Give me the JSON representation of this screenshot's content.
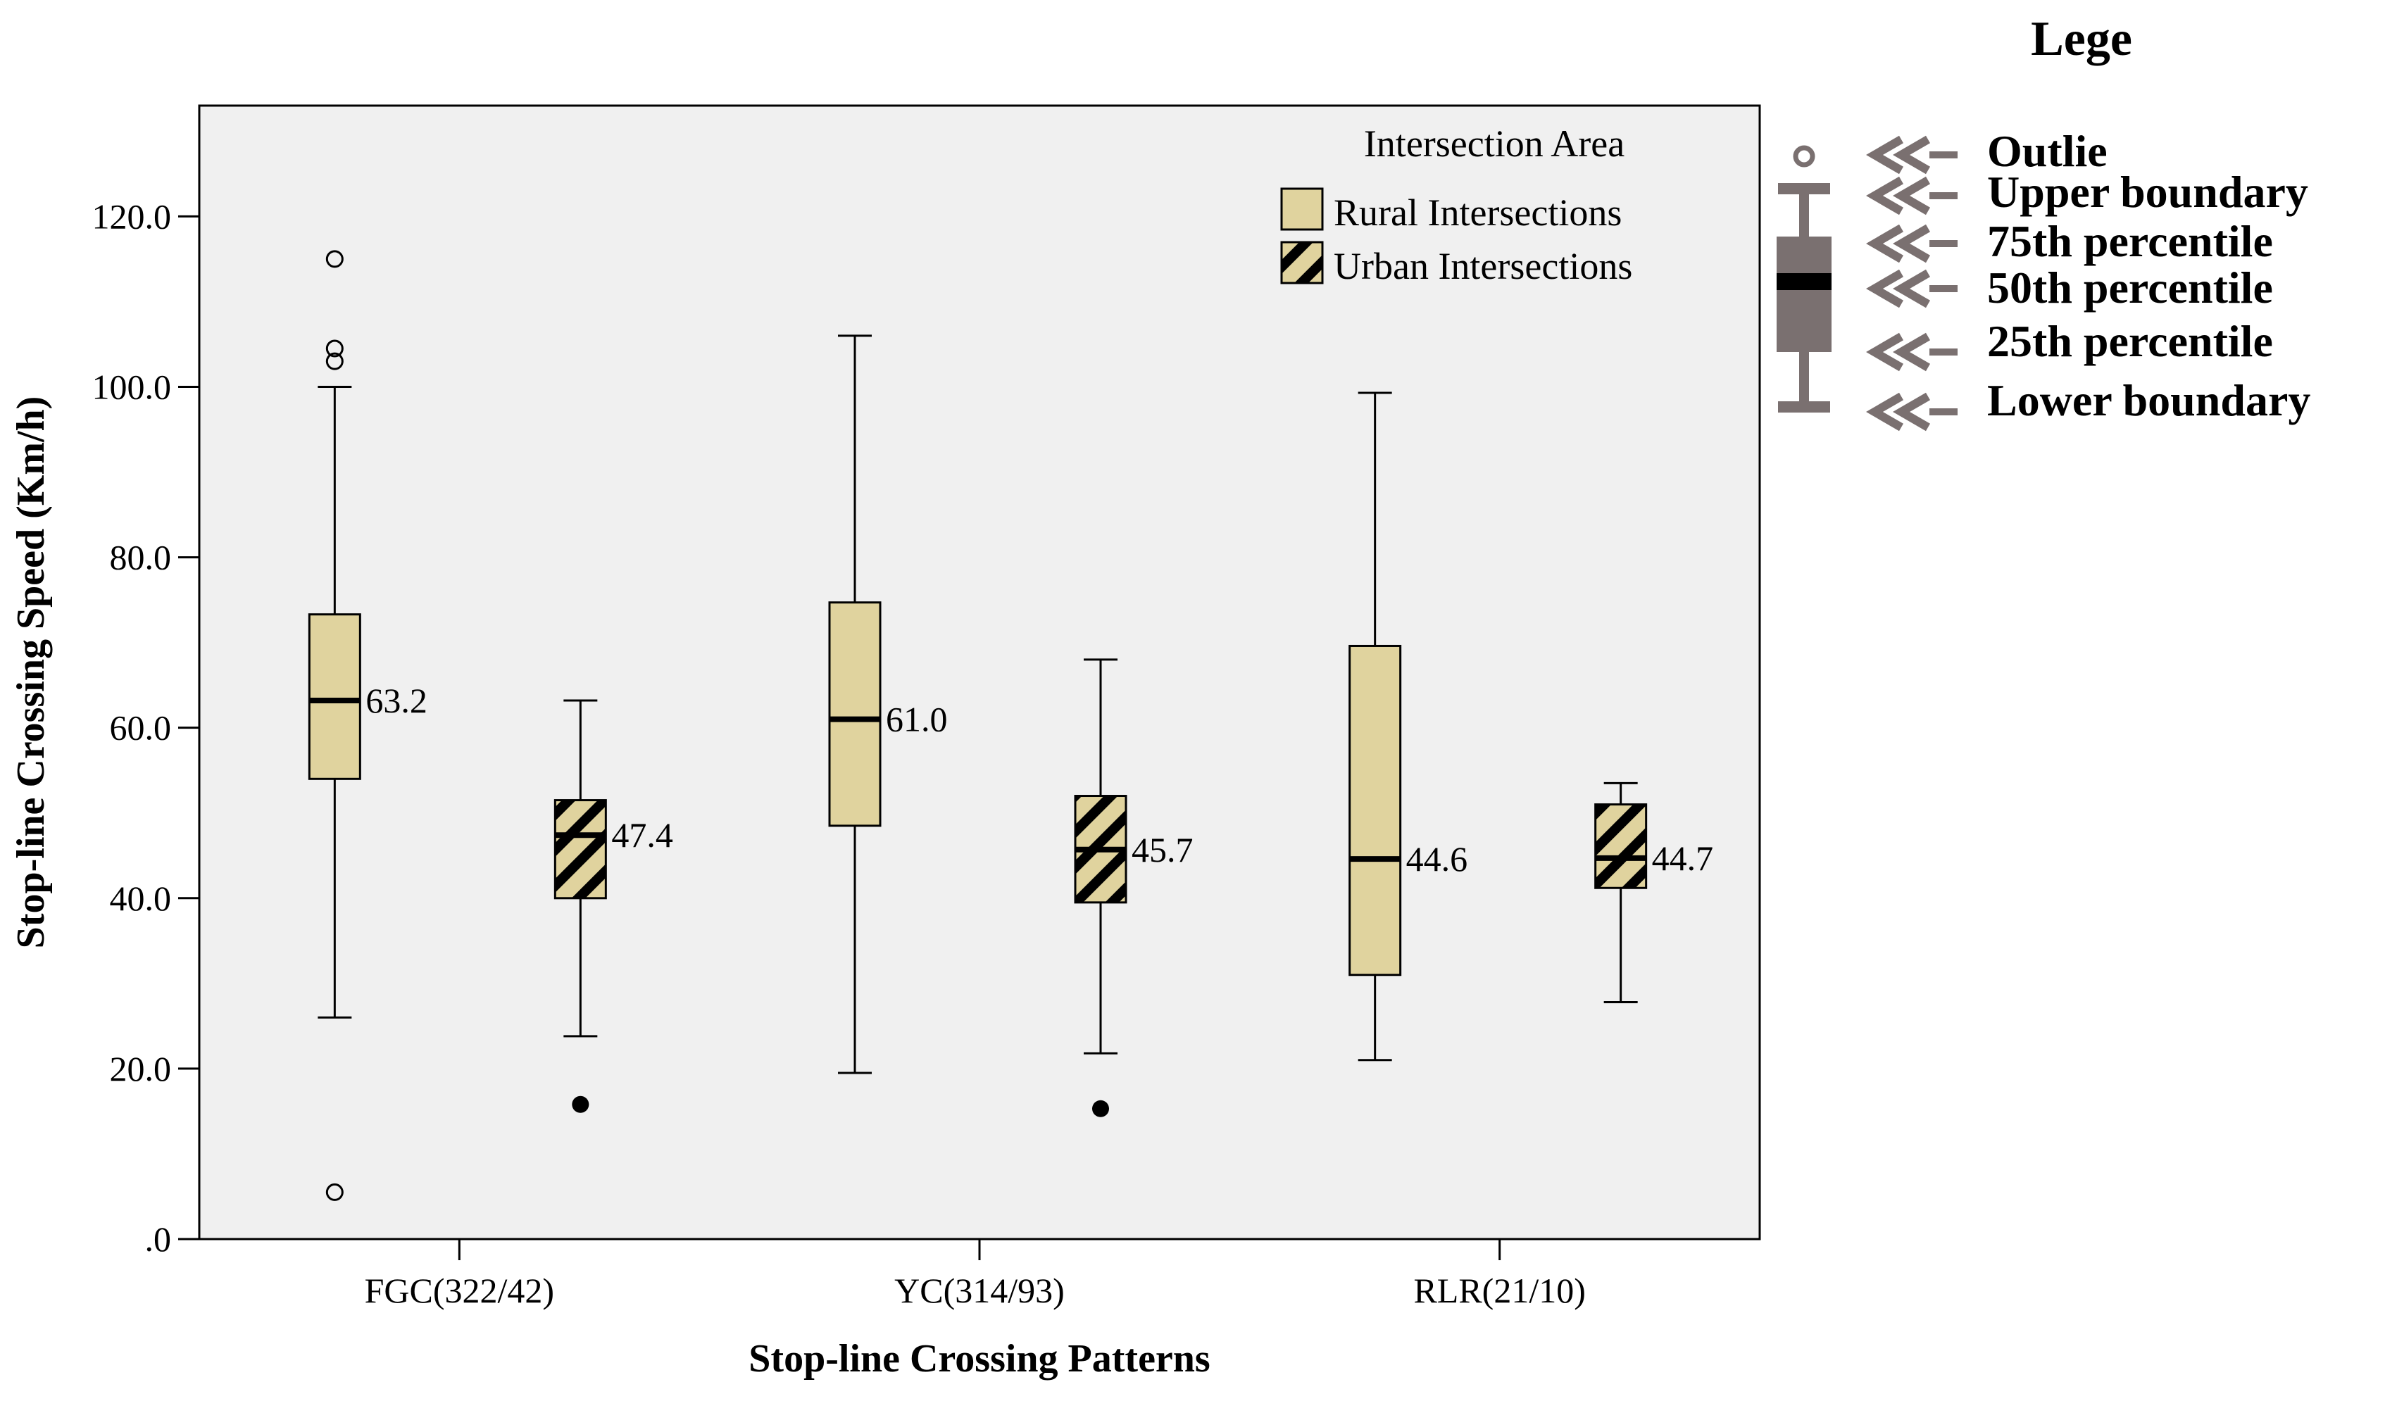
{
  "colors": {
    "plot_bg": "#f0f0f0",
    "rural_fill": "#e0d39e",
    "stroke": "#000000",
    "legend_gray": "#7a7070",
    "stripe": "#000000"
  },
  "chart_data": {
    "type": "boxplot",
    "title": "",
    "xlabel": "Stop-line Crossing Patterns",
    "ylabel": "Stop-line Crossing Speed (Km/h)",
    "ylim": [
      0,
      133
    ],
    "yticks": [
      0,
      20,
      40,
      60,
      80,
      100,
      120
    ],
    "ytick_labels": [
      ".0",
      "20.0",
      "40.0",
      "60.0",
      "80.0",
      "100.0",
      "120.0"
    ],
    "categories": [
      "FGC(322/42)",
      "YC(314/93)",
      "RLR(21/10)"
    ],
    "legend": {
      "title": "Intersection Area",
      "entries": [
        "Rural Intersections",
        "Urban Intersections"
      ]
    },
    "series": [
      {
        "name": "Rural Intersections",
        "pattern": "solid",
        "boxes": [
          {
            "category": "FGC(322/42)",
            "min": 26.0,
            "q1": 54.0,
            "median": 63.2,
            "q3": 73.3,
            "max": 100.0,
            "label": "63.2",
            "outliers": [
              {
                "value": 115.0,
                "kind": "open"
              },
              {
                "value": 104.5,
                "kind": "open"
              },
              {
                "value": 103.0,
                "kind": "open"
              },
              {
                "value": 5.5,
                "kind": "open"
              }
            ]
          },
          {
            "category": "YC(314/93)",
            "min": 19.5,
            "q1": 48.5,
            "median": 61.0,
            "q3": 74.7,
            "max": 106.0,
            "label": "61.0",
            "outliers": []
          },
          {
            "category": "RLR(21/10)",
            "min": 21.0,
            "q1": 31.0,
            "median": 44.6,
            "q3": 69.6,
            "max": 99.3,
            "label": "44.6",
            "outliers": []
          }
        ]
      },
      {
        "name": "Urban Intersections",
        "pattern": "hatched",
        "boxes": [
          {
            "category": "FGC(322/42)",
            "min": 23.8,
            "q1": 40.0,
            "median": 47.4,
            "q3": 51.5,
            "max": 63.2,
            "label": "47.4",
            "outliers": [
              {
                "value": 15.8,
                "kind": "filled"
              }
            ]
          },
          {
            "category": "YC(314/93)",
            "min": 21.8,
            "q1": 39.5,
            "median": 45.7,
            "q3": 52.0,
            "max": 68.0,
            "label": "45.7",
            "outliers": [
              {
                "value": 15.3,
                "kind": "filled"
              }
            ]
          },
          {
            "category": "RLR(21/10)",
            "min": 27.8,
            "q1": 41.2,
            "median": 44.7,
            "q3": 51.0,
            "max": 53.5,
            "label": "44.7",
            "outliers": []
          }
        ]
      }
    ]
  },
  "key_legend": {
    "title": "Lege",
    "items": [
      "Outlie",
      "Upper boundary",
      "75th percentile",
      "50th percentile",
      "25th percentile",
      "Lower boundary"
    ]
  }
}
